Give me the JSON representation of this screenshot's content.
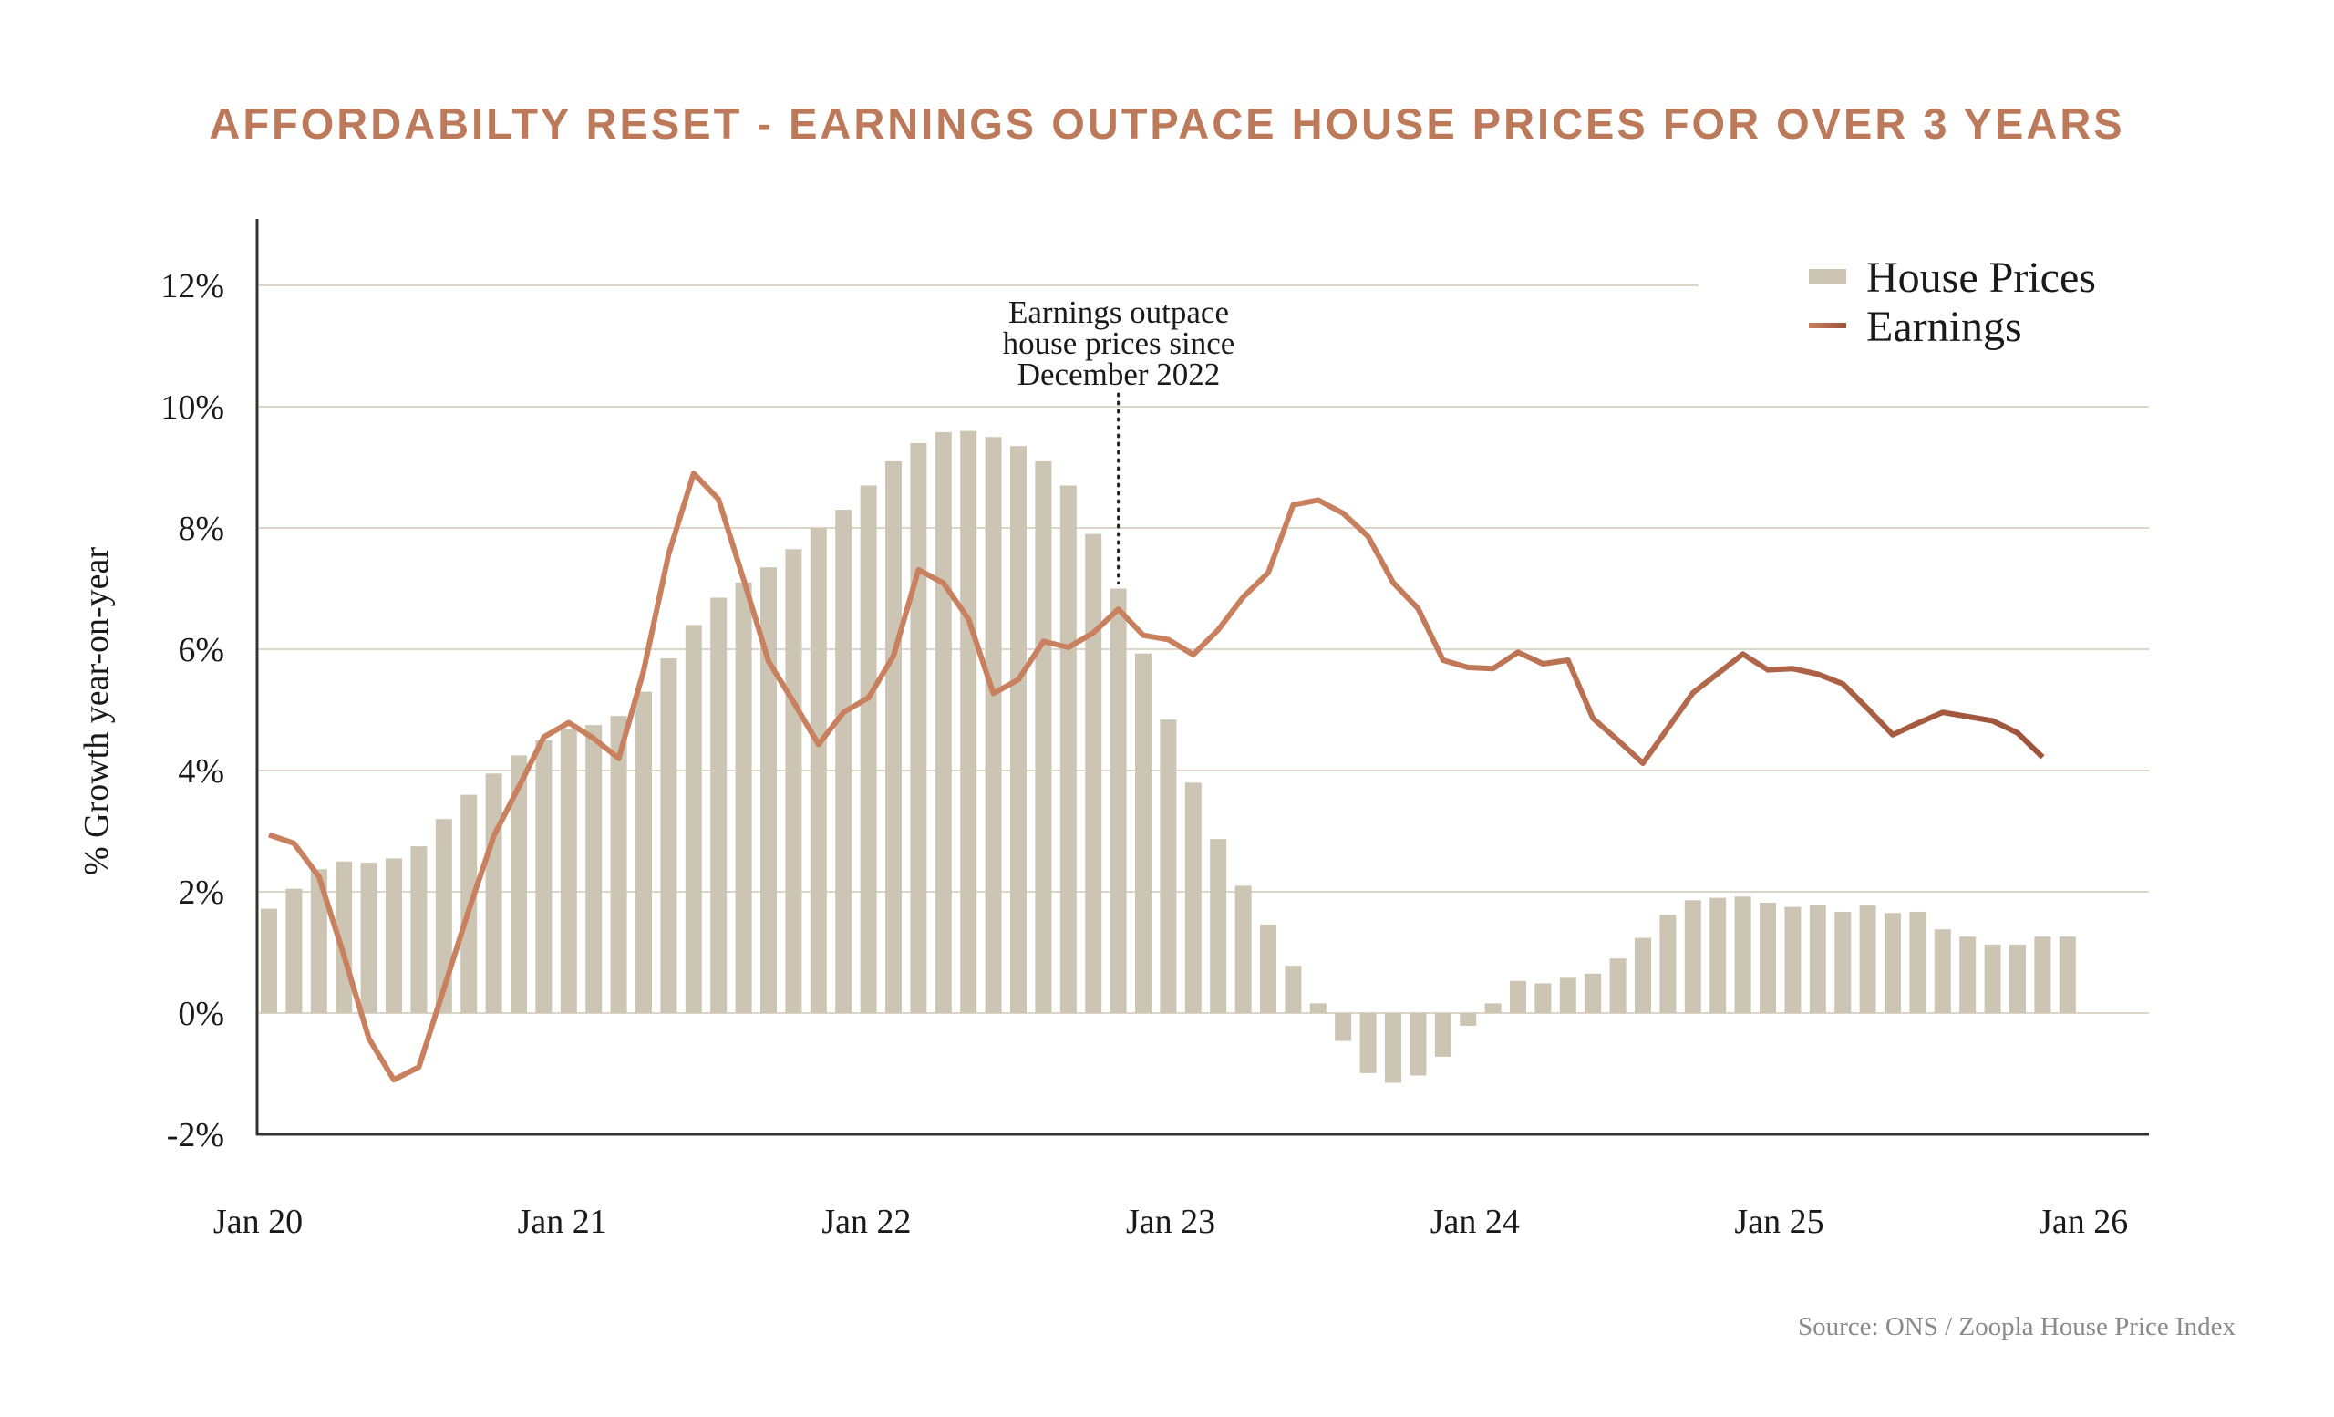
{
  "title": "AFFORDABILTY RESET - EARNINGS OUTPACE HOUSE PRICES FOR OVER 3 YEARS",
  "source": "Source: ONS / Zoopla House Price Index",
  "chart_data": {
    "type": "bar+line",
    "ylabel": "% Growth year-on-year",
    "ylim": [
      -2,
      13
    ],
    "yticks": [
      -2,
      0,
      2,
      4,
      6,
      8,
      10,
      12
    ],
    "ytick_labels": [
      "-2%",
      "0%",
      "2%",
      "4%",
      "6%",
      "8%",
      "10%",
      "12%"
    ],
    "xtick_labels": [
      "Jan 20",
      "Jan 21",
      "Jan 22",
      "Jan 23",
      "Jan 24",
      "Jan 25",
      "Jan 26"
    ],
    "x_start": "Jan 2020",
    "x_frequency": "monthly",
    "grid": "horizontal",
    "legend_position": "top-right",
    "annotation": {
      "lines": [
        "Earnings outpace",
        "house prices since",
        "December 2022"
      ],
      "at": "Nov 2022"
    },
    "colors": {
      "bars": "#cdc5b4",
      "line_start": "#c8805e",
      "line_end": "#9e533a",
      "title": "#bd7a5b",
      "grid": "#ddd6c8",
      "axis": "#333333"
    },
    "series": [
      {
        "name": "House Prices",
        "type": "bar",
        "values": [
          1.72,
          2.05,
          2.37,
          2.5,
          2.48,
          2.55,
          2.75,
          3.2,
          3.6,
          3.95,
          4.25,
          4.5,
          4.68,
          4.75,
          4.9,
          5.3,
          5.85,
          6.4,
          6.85,
          7.1,
          7.35,
          7.65,
          8.0,
          8.3,
          8.7,
          9.1,
          9.4,
          9.58,
          9.6,
          9.5,
          9.35,
          9.1,
          8.7,
          7.9,
          7.0,
          5.93,
          4.84,
          3.8,
          2.87,
          2.1,
          1.46,
          0.78,
          0.16,
          -0.46,
          -0.99,
          -1.15,
          -1.03,
          -0.72,
          -0.21,
          0.16,
          0.53,
          0.49,
          0.58,
          0.65,
          0.9,
          1.24,
          1.62,
          1.86,
          1.9,
          1.92,
          1.82,
          1.75,
          1.79,
          1.67,
          1.78,
          1.65,
          1.67,
          1.38,
          1.26,
          1.13,
          1.13,
          1.26,
          1.26
        ]
      },
      {
        "name": "Earnings",
        "type": "line",
        "values": [
          2.94,
          2.8,
          2.25,
          0.95,
          -0.42,
          -1.1,
          -0.89,
          0.4,
          1.7,
          2.92,
          3.73,
          4.55,
          4.79,
          4.53,
          4.2,
          5.65,
          7.57,
          8.9,
          8.47,
          7.15,
          5.8,
          5.13,
          4.43,
          4.96,
          5.2,
          5.89,
          7.31,
          7.09,
          6.5,
          5.27,
          5.5,
          6.13,
          6.03,
          6.27,
          6.66,
          6.23,
          6.16,
          5.91,
          6.32,
          6.86,
          7.26,
          8.38,
          8.46,
          8.24,
          7.86,
          7.1,
          6.67,
          5.82,
          5.7,
          5.68,
          5.95,
          5.76,
          5.82,
          4.86,
          4.5,
          4.12,
          4.7,
          5.28,
          5.6,
          5.92,
          5.66,
          5.68,
          5.59,
          5.43,
          5.02,
          4.59,
          4.78,
          4.96,
          4.89,
          4.82,
          4.62,
          4.22
        ]
      }
    ]
  }
}
